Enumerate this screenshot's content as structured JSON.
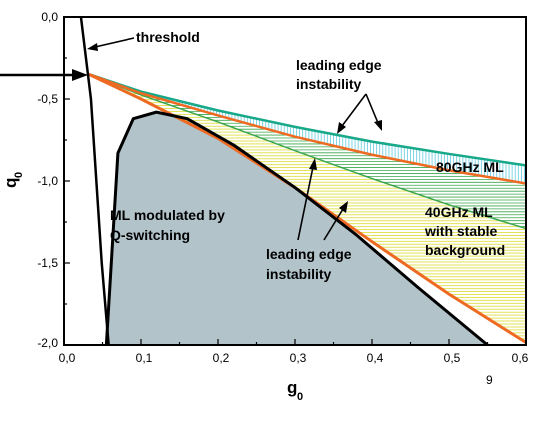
{
  "chart_data": {
    "type": "line",
    "xlabel": "g",
    "xlabel_sub": "0",
    "ylabel": "q",
    "ylabel_sub": "0",
    "xlim": [
      0.0,
      0.6
    ],
    "ylim": [
      -2.0,
      0.0
    ],
    "x_ticks": [
      "0,0",
      "0,1",
      "0,2",
      "0,3",
      "0,4",
      "0,5",
      "0,6"
    ],
    "y_ticks": [
      "0,0",
      "-0,5",
      "-1,0",
      "-1,5",
      "-2,0"
    ],
    "page_number": "9",
    "colors": {
      "boundary": "#000000",
      "orange": "#ee6a22",
      "teal": "#16a889",
      "green": "#3aa64c",
      "region_fill": "#b2c3ca",
      "hatch_yellow": "#e3e25a",
      "hatch_cyan": "#64cbe0"
    },
    "series": [
      {
        "key": "threshold",
        "x": [
          0.022,
          0.035,
          0.042,
          0.049,
          0.058
        ],
        "y": [
          0.0,
          -0.5,
          -1.0,
          -1.5,
          -2.0
        ]
      },
      {
        "key": "upper",
        "x": [
          0.03,
          0.1,
          0.2,
          0.3,
          0.4,
          0.5,
          0.6
        ],
        "y": [
          -0.345,
          -0.455,
          -0.57,
          -0.67,
          -0.76,
          -0.835,
          -0.905
        ]
      },
      {
        "key": "orange_top",
        "x": [
          0.03,
          0.1,
          0.2,
          0.3,
          0.4,
          0.5,
          0.6
        ],
        "y": [
          -0.345,
          -0.465,
          -0.6,
          -0.73,
          -0.84,
          -0.935,
          -1.015
        ]
      },
      {
        "key": "green_mid",
        "x": [
          0.03,
          0.1,
          0.2,
          0.3,
          0.4,
          0.5,
          0.6
        ],
        "y": [
          -0.345,
          -0.475,
          -0.64,
          -0.815,
          -0.985,
          -1.145,
          -1.29
        ]
      },
      {
        "key": "orange_bottom",
        "x": [
          0.03,
          0.1,
          0.2,
          0.3,
          0.4,
          0.5,
          0.6
        ],
        "y": [
          -0.345,
          -0.5,
          -0.74,
          -1.04,
          -1.37,
          -1.69,
          -1.985
        ]
      },
      {
        "key": "qswitch_boundary",
        "x": [
          0.055,
          0.07,
          0.09,
          0.12,
          0.16,
          0.22,
          0.3,
          0.38,
          0.46,
          0.55
        ],
        "y": [
          -2.0,
          -0.83,
          -0.62,
          -0.58,
          -0.62,
          -0.78,
          -1.04,
          -1.33,
          -1.65,
          -2.0
        ]
      }
    ],
    "labels": [
      {
        "key": "threshold",
        "text": "threshold"
      },
      {
        "key": "leading_top_1",
        "text": "leading edge"
      },
      {
        "key": "leading_top_2",
        "text": "instability"
      },
      {
        "key": "ml80",
        "text": "80GHz ML"
      },
      {
        "key": "ml40_1",
        "text": "40GHz ML"
      },
      {
        "key": "ml40_2",
        "text": "with stable"
      },
      {
        "key": "ml40_3",
        "text": "background"
      },
      {
        "key": "qsw_1",
        "text": "ML modulated by"
      },
      {
        "key": "qsw_2",
        "text": "Q-switching"
      },
      {
        "key": "leading_bot_1",
        "text": "leading edge"
      },
      {
        "key": "leading_bot_2",
        "text": "instability"
      }
    ]
  }
}
